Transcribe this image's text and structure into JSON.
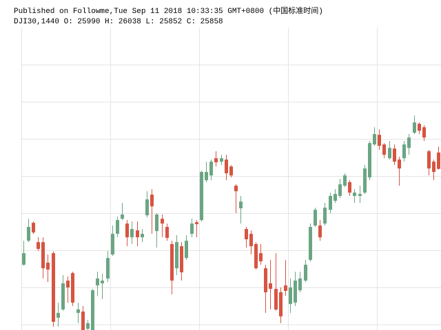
{
  "header": {
    "published": "Published on Followme,Tue Sep 11 2018 10:33:35 GMT+0800 (中国标准时间)",
    "ohlc_line": "DJI30,1440 O: 25990 H: 26038 L: 25852 C: 25858"
  },
  "chart_data": {
    "type": "candlestick",
    "up_color": "#6ba583",
    "down_color": "#d75442",
    "grid": true,
    "xlim": [
      -0.5,
      84.5
    ],
    "xticks": [
      -0.4,
      17.6,
      35.6,
      53.6,
      71.6
    ],
    "ylim": [
      24556,
      27000
    ],
    "yticks": [
      26700,
      26400,
      26100,
      25800,
      25500,
      25200,
      24900,
      24600
    ],
    "open": [
      25083,
      25277,
      25422,
      25266,
      25266,
      25100,
      25177,
      24655,
      24722,
      24955,
      25016,
      24694,
      24705,
      24566,
      24555,
      24916,
      24933,
      24972,
      25166,
      25333,
      25455,
      25416,
      25305,
      25361,
      25305,
      25483,
      25650,
      25355,
      25455,
      25389,
      25250,
      25055,
      25233,
      25138,
      25333,
      25427,
      25444,
      25766,
      25805,
      25944,
      25916,
      25933,
      25877,
      25722,
      25539,
      25372,
      25333,
      25250,
      25177,
      25055,
      24933,
      24888,
      24861,
      24916,
      24766,
      24777,
      24877,
      24955,
      25122,
      25400,
      25400,
      25416,
      25527,
      25600,
      25639,
      25722,
      25750,
      25639,
      25639,
      25666,
      25789,
      26055,
      26133,
      26055,
      25944,
      26022,
      25933,
      25944,
      26027,
      26150,
      26222,
      26194,
      26000,
      25916,
      25990
    ],
    "high": [
      25277,
      25455,
      25433,
      25305,
      25305,
      25166,
      25189,
      24777,
      25000,
      24988,
      25027,
      24777,
      24750,
      24638,
      24888,
      25027,
      25011,
      25194,
      25400,
      25472,
      25583,
      25444,
      25433,
      25433,
      25372,
      25677,
      25694,
      25500,
      25489,
      25416,
      25277,
      25322,
      25266,
      25322,
      25455,
      25444,
      25844,
      25916,
      25933,
      26000,
      25972,
      25972,
      25889,
      25733,
      25639,
      25389,
      25361,
      25266,
      25250,
      25083,
      25122,
      25177,
      24900,
      25122,
      24972,
      25027,
      25027,
      25122,
      25416,
      25544,
      25444,
      25583,
      25666,
      25694,
      25777,
      25822,
      25766,
      25694,
      25722,
      25889,
      26083,
      26194,
      26177,
      26066,
      26083,
      26055,
      25955,
      26083,
      26139,
      26289,
      26233,
      26211,
      26011,
      25933,
      26038
    ],
    "low": [
      25077,
      25266,
      25333,
      25194,
      24972,
      24944,
      24583,
      24583,
      24711,
      24777,
      24750,
      24611,
      24555,
      24555,
      24555,
      24833,
      24805,
      24944,
      25155,
      25305,
      25444,
      25233,
      25250,
      25233,
      25266,
      25466,
      25333,
      25222,
      25305,
      25277,
      24844,
      25000,
      24955,
      25122,
      25305,
      25305,
      25433,
      25750,
      25766,
      25877,
      25889,
      25766,
      25789,
      25500,
      25416,
      25222,
      25166,
      25044,
      25083,
      24694,
      24722,
      24711,
      24611,
      24833,
      24694,
      24750,
      24861,
      24944,
      25111,
      25389,
      25277,
      25400,
      25500,
      25583,
      25622,
      25711,
      25639,
      25583,
      25583,
      25655,
      25766,
      26044,
      26011,
      25944,
      25933,
      25889,
      25722,
      25916,
      25972,
      26139,
      26139,
      26083,
      25805,
      25766,
      25852
    ],
    "close": [
      25177,
      25389,
      25344,
      25211,
      25055,
      25044,
      24622,
      24694,
      24933,
      24900,
      24777,
      24722,
      24555,
      24611,
      24877,
      24972,
      24955,
      25138,
      25333,
      25444,
      25489,
      25305,
      25372,
      25305,
      25333,
      25611,
      25555,
      25489,
      25416,
      25300,
      24955,
      25266,
      25022,
      25277,
      25416,
      25411,
      25833,
      25833,
      25916,
      25911,
      25944,
      25822,
      25805,
      25677,
      25594,
      25289,
      25233,
      25055,
      25111,
      24861,
      24888,
      24722,
      24666,
      24872,
      24900,
      24955,
      24972,
      25083,
      25389,
      25527,
      25305,
      25544,
      25639,
      25655,
      25733,
      25805,
      25666,
      25666,
      25655,
      25861,
      26066,
      26139,
      26044,
      25972,
      26027,
      25916,
      25861,
      26055,
      26111,
      26233,
      26166,
      26111,
      25861,
      25833,
      25858
    ]
  }
}
